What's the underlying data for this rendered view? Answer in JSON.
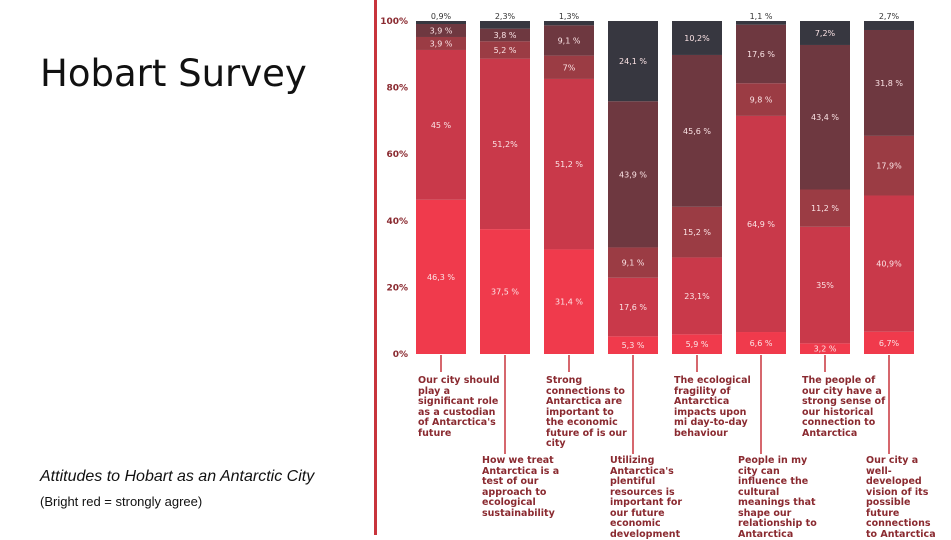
{
  "slide": {
    "title": "Hobart Survey",
    "caption": "Attitudes to Hobart as an Antarctic City",
    "caption_note": "(Bright red = strongly agree)"
  },
  "colors": {
    "strongly_agree": "#f03a4c",
    "agree": "#c9394a",
    "neutral": "#9b3c44",
    "disagree": "#6e3840",
    "strongly_disagree": "#373740",
    "axis": "#c8343c",
    "label_text": "#8a2a30"
  },
  "chart_data": {
    "type": "bar",
    "stacked": true,
    "percent": true,
    "ylim": [
      0,
      100
    ],
    "yticks": [
      "0%",
      "20%",
      "40%",
      "60%",
      "80%",
      "100%"
    ],
    "categories": [
      "Our city should play a significant role as a custodian of Antarctica's future",
      "How we treat Antarctica is a test of our approach to ecological sustainability",
      "Strong connections to Antarctica are important to the economic future of is our city",
      "Utilizing Antarctica's plentiful resources is important for our future economic development",
      "The ecological fragility of Antarctica impacts upon mi day-to-day behaviour",
      "People in my city can influence the cultural meanings that shape our relationship to Antarctica",
      "The people of our city have a strong sense of our historical connection to Antarctica",
      "Our city a well-developed vision of its possible future connections to Antarctica"
    ],
    "series": [
      {
        "values": [
          46.3,
          37.5,
          31.4,
          5.3,
          5.9,
          6.6,
          3.2,
          6.7
        ],
        "labels": [
          "46,3 %",
          "37,5 %",
          "31,4 %",
          "5,3 %",
          "5,9 %",
          "6,6 %",
          "3,2 %",
          "6,7%"
        ]
      },
      {
        "values": [
          45,
          51.2,
          51.2,
          17.6,
          23.1,
          64.9,
          35,
          40.9
        ],
        "labels": [
          "45 %",
          "51,2%",
          "51,2 %",
          "17,6 %",
          "23,1%",
          "64,9 %",
          "35%",
          "40,9%"
        ]
      },
      {
        "values": [
          3.9,
          5.2,
          7,
          9.1,
          15.2,
          9.8,
          11.2,
          17.9
        ],
        "labels": [
          "3,9 %",
          "5,2 %",
          "7%",
          "9,1 %",
          "15,2 %",
          "9,8 %",
          "11,2 %",
          "17,9%"
        ]
      },
      {
        "values": [
          3.9,
          3.8,
          9.1,
          43.9,
          45.6,
          17.6,
          43.4,
          31.8
        ],
        "labels": [
          "3,9 %",
          "3,8 %",
          "9,1 %",
          "43,9 %",
          "45,6 %",
          "17,6 %",
          "43,4 %",
          "31,8 %"
        ]
      },
      {
        "values": [
          0.9,
          2.3,
          1.3,
          24.1,
          10.2,
          1.1,
          7.2,
          2.7
        ],
        "labels": [
          "0,9%",
          "2,3%",
          "1,3%",
          "24,1 %",
          "10,2%",
          "1,1 %",
          "7,2%",
          "2,7%"
        ]
      }
    ],
    "label_placement": [
      "bottom",
      "top",
      "bottom",
      "top",
      "bottom",
      "top",
      "bottom",
      "top"
    ]
  }
}
